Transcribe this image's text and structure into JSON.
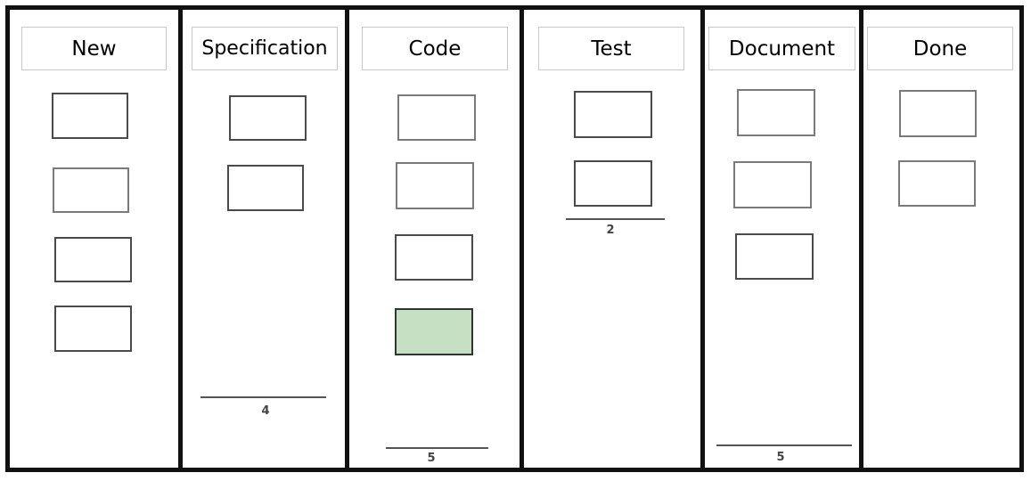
{
  "columns": [
    {
      "id": "new",
      "label": "New",
      "card_count": 4,
      "wip_limit": ""
    },
    {
      "id": "specification",
      "label": "Specification",
      "card_count": 2,
      "wip_limit": "4"
    },
    {
      "id": "code",
      "label": "Code",
      "card_count": 4,
      "active_cards": 1,
      "wip_limit": "5"
    },
    {
      "id": "test",
      "label": "Test",
      "card_count": 2,
      "wip_limit": "2"
    },
    {
      "id": "document",
      "label": "Document",
      "card_count": 3,
      "wip_limit": "5"
    },
    {
      "id": "done",
      "label": "Done",
      "card_count": 2,
      "wip_limit": ""
    }
  ],
  "colors": {
    "active_card": "#c5e0c2",
    "border": "#111111"
  }
}
